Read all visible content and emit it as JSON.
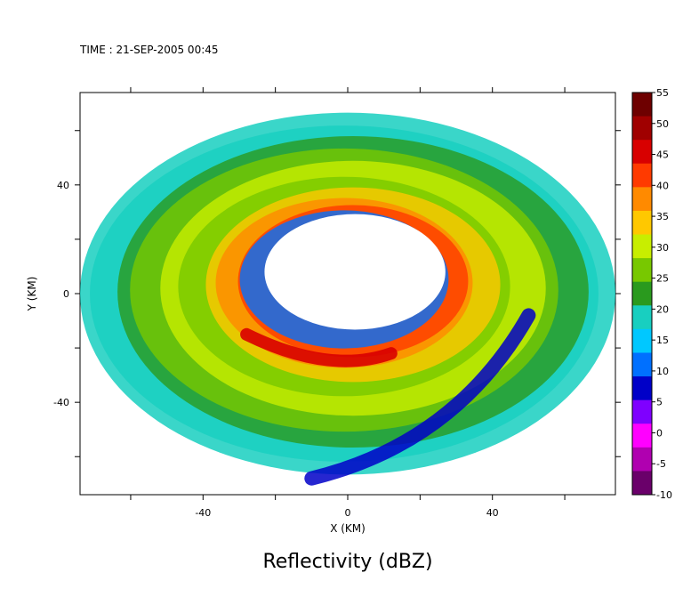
{
  "header": {
    "time_label": "TIME : 21-SEP-2005 00:45"
  },
  "chart_data": {
    "type": "heatmap",
    "title": "Reflectivity (dBZ)",
    "xlabel": "X (KM)",
    "ylabel": "Y (KM)",
    "xlim": [
      -74,
      74
    ],
    "ylim": [
      -74,
      74
    ],
    "x_ticks": [
      -40,
      0,
      40
    ],
    "y_ticks": [
      -40,
      0,
      40
    ],
    "colorbar": {
      "levels": [
        55,
        50,
        45,
        40,
        35,
        30,
        25,
        20,
        15,
        10,
        5,
        0,
        -5,
        -10
      ],
      "colors": [
        "#6e0000",
        "#a00000",
        "#d80000",
        "#ff3a00",
        "#ff8a00",
        "#ffc800",
        "#c8ee00",
        "#78c800",
        "#2a9a1e",
        "#18cfc0",
        "#00c8ff",
        "#0070ff",
        "#0000c8",
        "#7f00ff",
        "#ff00ff",
        "#b000b0",
        "#6a006a"
      ]
    },
    "field": {
      "eye_radius_km": 25,
      "domain_radius_km": 74,
      "rainband_description": "Spiral reflectivity bands around a clear eye"
    }
  }
}
